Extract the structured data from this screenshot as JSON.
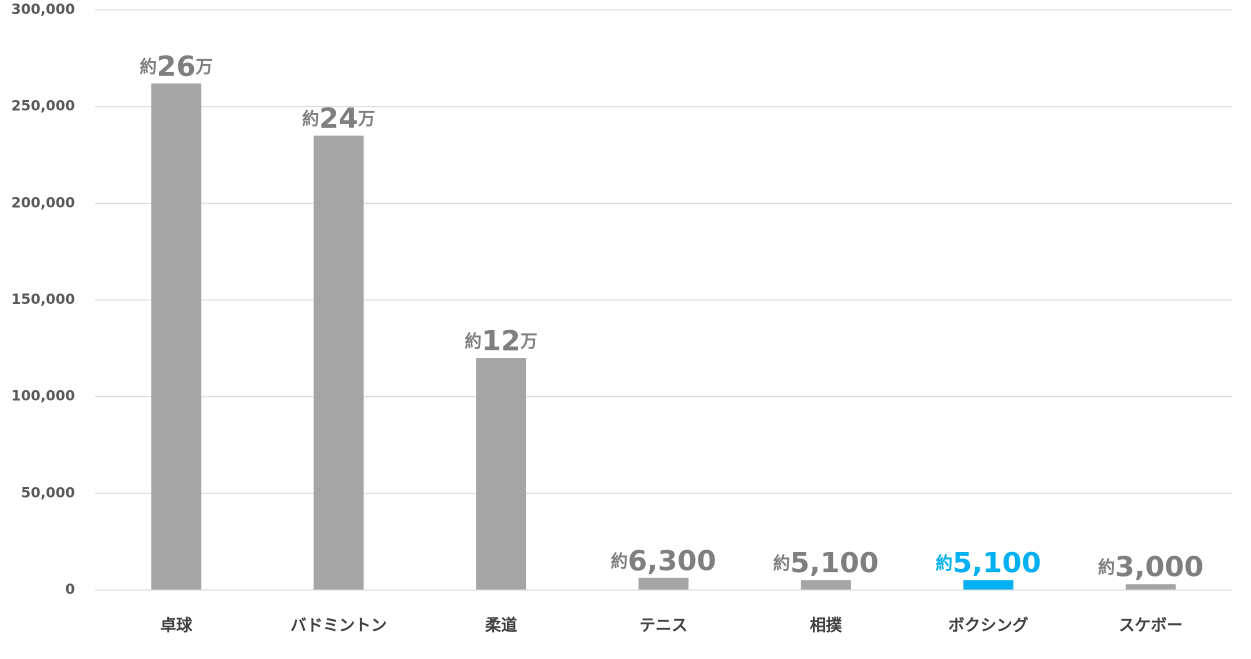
{
  "chart_data": {
    "type": "bar",
    "categories": [
      "卓球",
      "バドミントン",
      "柔道",
      "テニス",
      "相撲",
      "ボクシング",
      "スケボー"
    ],
    "values": [
      262000,
      235000,
      120000,
      6300,
      5100,
      5100,
      3000
    ],
    "value_labels": [
      "約26万",
      "約24万",
      "約12万",
      "約6,300",
      "約5,100",
      "約5,100",
      "約3,000"
    ],
    "colors": [
      "#a5a5a5",
      "#a5a5a5",
      "#a5a5a5",
      "#a5a5a5",
      "#a5a5a5",
      "#00b0f0",
      "#a5a5a5"
    ],
    "ylim": [
      0,
      300000
    ],
    "yticks": [
      0,
      {
        "value": 50000,
        "label": "50,000"
      },
      {
        "value": 100000,
        "label": "100,000"
      },
      {
        "value": 150000,
        "label": "150,000"
      },
      {
        "value": 200000,
        "label": "200,000"
      },
      {
        "value": 250000,
        "label": "250,000"
      },
      {
        "value": 300000,
        "label": "300,000"
      }
    ],
    "grid": true
  }
}
